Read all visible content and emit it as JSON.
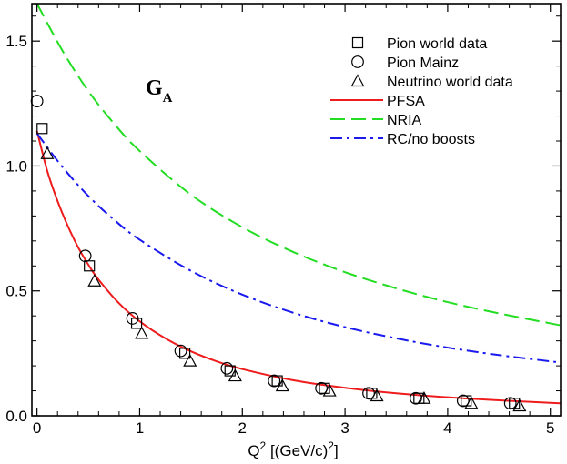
{
  "chart_data": {
    "type": "scatter",
    "title": "",
    "annotation": {
      "main": "G",
      "sub": "A"
    },
    "xlabel": {
      "text": "Q",
      "sup": "2",
      "rest": " [(GeV/c)",
      "sup2": "2",
      "close": "]"
    },
    "ylabel": "",
    "xlim": [
      -0.05,
      5.1
    ],
    "ylim": [
      0,
      1.65
    ],
    "xticks": [
      0,
      1,
      2,
      3,
      4,
      5
    ],
    "xtick_labels": [
      "0",
      "1",
      "2",
      "3",
      "4",
      "5"
    ],
    "yticks": [
      0.0,
      0.5,
      1.0,
      1.5
    ],
    "ytick_labels": [
      "0.0",
      "0.5",
      "1.0",
      "1.5"
    ],
    "grid": false,
    "legend_position": "top-right",
    "series": [
      {
        "name": "Pion world data",
        "kind": "points",
        "marker": "square",
        "color": "#000000",
        "x": [
          0.05,
          0.51,
          0.97,
          1.44,
          1.88,
          2.34,
          2.8,
          3.26,
          3.72,
          4.18,
          4.65
        ],
        "y": [
          1.15,
          0.6,
          0.37,
          0.25,
          0.18,
          0.14,
          0.11,
          0.09,
          0.07,
          0.06,
          0.05
        ]
      },
      {
        "name": "Pion Mainz",
        "kind": "points",
        "marker": "circle",
        "color": "#000000",
        "x": [
          0.0,
          0.47,
          0.93,
          1.4,
          1.85,
          2.31,
          2.77,
          3.23,
          3.69,
          4.15,
          4.61
        ],
        "y": [
          1.26,
          0.64,
          0.39,
          0.26,
          0.19,
          0.14,
          0.11,
          0.09,
          0.07,
          0.06,
          0.05
        ]
      },
      {
        "name": "Neutrino world data",
        "kind": "points",
        "marker": "triangle",
        "color": "#000000",
        "x": [
          0.1,
          0.56,
          1.02,
          1.49,
          1.93,
          2.39,
          2.85,
          3.31,
          3.77,
          4.23,
          4.7
        ],
        "y": [
          1.05,
          0.54,
          0.33,
          0.22,
          0.16,
          0.12,
          0.1,
          0.08,
          0.07,
          0.05,
          0.04
        ]
      },
      {
        "name": "PFSA",
        "kind": "line",
        "dash": "solid",
        "color": "#ee1c1c",
        "x": [
          0.0,
          0.1,
          0.2,
          0.3,
          0.4,
          0.5,
          0.6,
          0.8,
          1.0,
          1.25,
          1.5,
          1.75,
          2.0,
          2.5,
          3.0,
          3.5,
          4.0,
          4.5,
          5.0,
          5.1
        ],
        "y": [
          1.14,
          0.98,
          0.86,
          0.76,
          0.675,
          0.605,
          0.545,
          0.45,
          0.378,
          0.31,
          0.258,
          0.218,
          0.187,
          0.142,
          0.112,
          0.09,
          0.074,
          0.062,
          0.052,
          0.05
        ]
      },
      {
        "name": "NRIA",
        "kind": "line",
        "dash": "dashed",
        "color": "#22dd22",
        "x": [
          0.0,
          0.25,
          0.5,
          0.75,
          1.0,
          1.5,
          2.0,
          2.5,
          3.0,
          3.5,
          4.0,
          4.5,
          5.0,
          5.1
        ],
        "y": [
          1.65,
          1.46,
          1.3,
          1.17,
          1.06,
          0.885,
          0.755,
          0.655,
          0.575,
          0.51,
          0.455,
          0.41,
          0.37,
          0.362
        ]
      },
      {
        "name": "RC/no boosts",
        "kind": "line",
        "dash": "dashdot",
        "color": "#1a1aee",
        "x": [
          0.0,
          0.25,
          0.5,
          0.75,
          1.0,
          1.5,
          2.0,
          2.5,
          3.0,
          3.5,
          4.0,
          4.5,
          5.0,
          5.1
        ],
        "y": [
          1.13,
          0.995,
          0.88,
          0.785,
          0.705,
          0.58,
          0.485,
          0.412,
          0.355,
          0.31,
          0.273,
          0.243,
          0.218,
          0.213
        ]
      }
    ]
  }
}
